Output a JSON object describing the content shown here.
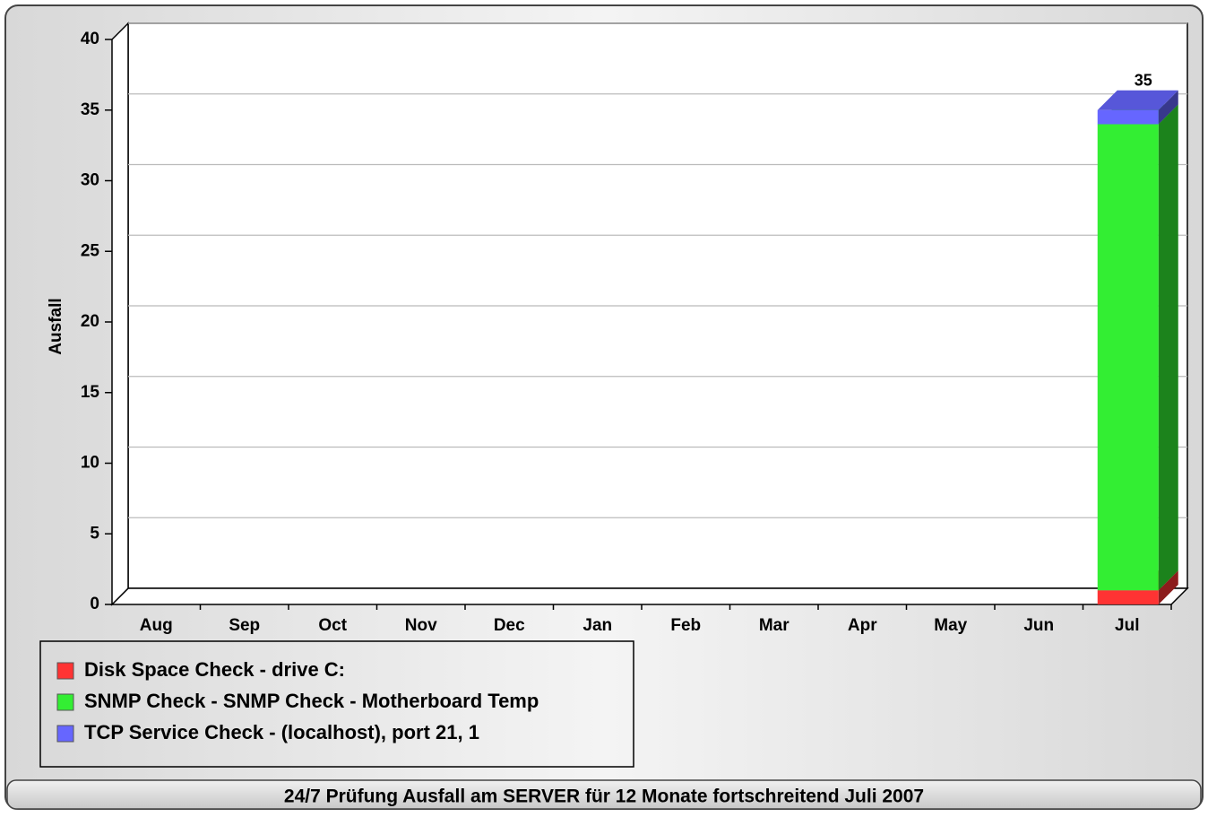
{
  "chart_data": {
    "type": "bar3d_stacked",
    "title": "24/7 Prüfung Ausfall am SERVER für 12 Monate fortschreitend Juli 2007",
    "y_label": "Ausfall",
    "categories": [
      "Aug",
      "Sep",
      "Oct",
      "Nov",
      "Dec",
      "Jan",
      "Feb",
      "Mar",
      "Apr",
      "May",
      "Jun",
      "Jul"
    ],
    "series": [
      {
        "name": "Disk Space Check - drive C:",
        "color": "#ff3333",
        "values": [
          0,
          0,
          0,
          0,
          0,
          0,
          0,
          0,
          0,
          0,
          0,
          1
        ]
      },
      {
        "name": "SNMP Check - SNMP Check - Motherboard Temp",
        "color": "#33ee33",
        "values": [
          0,
          0,
          0,
          0,
          0,
          0,
          0,
          0,
          0,
          0,
          0,
          33
        ]
      },
      {
        "name": "TCP Service Check -  (localhost), port 21, 1",
        "color": "#6666ff",
        "values": [
          0,
          0,
          0,
          0,
          0,
          0,
          0,
          0,
          0,
          0,
          0,
          1
        ]
      }
    ],
    "total_label": {
      "category": "Jul",
      "value": 35
    },
    "ylim": [
      0,
      40
    ],
    "yticks": [
      0,
      5,
      10,
      15,
      20,
      25,
      30,
      35,
      40
    ],
    "grid": true
  }
}
